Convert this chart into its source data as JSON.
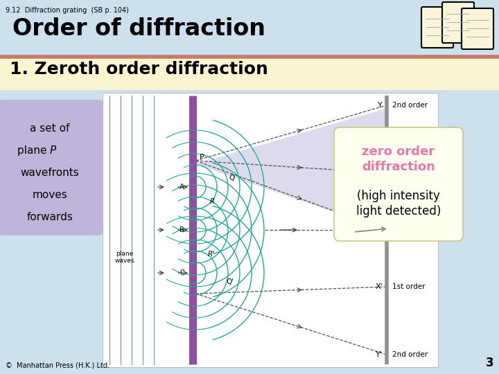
{
  "bg_color": "#cce0ee",
  "title_small": "9.12  Diffraction grating  (SB p. 104)",
  "title_main": "Order of diffraction",
  "subtitle": "1. Zeroth order diffraction",
  "subtitle_bg": "#f8f5d0",
  "separator_color": "#c87868",
  "left_box_text": "a set of\nplane P\nwavefronts\nmoves\nforwards",
  "left_box_bg": "#c0b0d8",
  "right_box_title": "zero order\ndiffraction",
  "right_box_body": "(high intensity\nlight detected)",
  "right_box_bg": "#fffff0",
  "right_box_title_color": "#e878a8",
  "right_box_body_color": "#000000",
  "footer_text": "©  Manhattan Press (H.K.) Ltd.",
  "page_num": "3",
  "grating_color": "#9050a0",
  "wave_color": "#20a898",
  "arrow_color": "#404040",
  "plane_wave_color": "#7090b8",
  "screen_color": "#909090",
  "diagram_bg": "#ffffff",
  "label_plane_waves": "plane\nwaves"
}
